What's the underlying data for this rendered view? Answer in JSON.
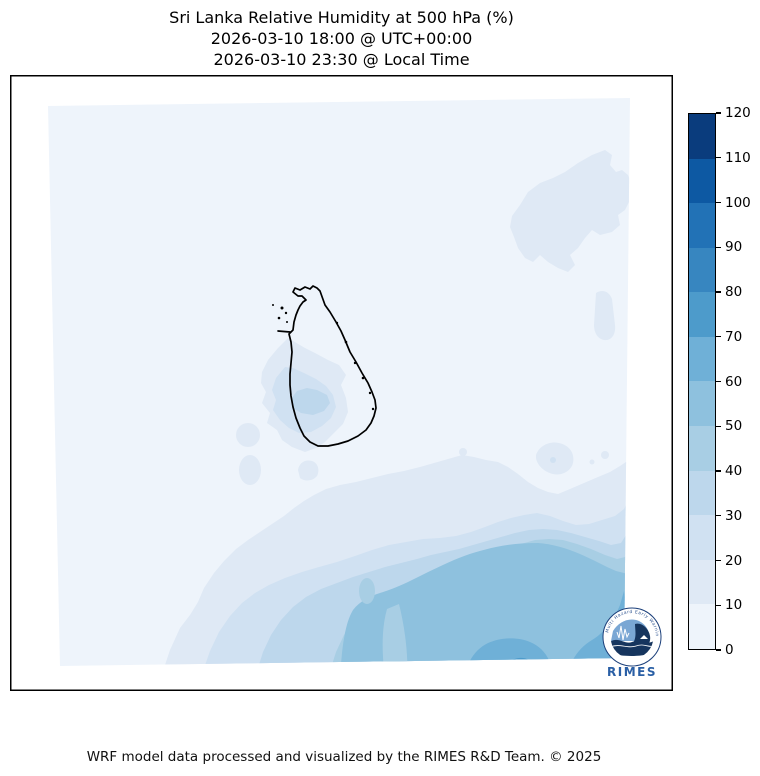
{
  "title": {
    "line1": "Sri Lanka Relative Humidity at 500 hPa (%)",
    "line2": "2026-03-10 18:00 @ UTC+00:00",
    "line3": "2026-03-10 23:30 @ Local Time"
  },
  "footer": {
    "credit": "WRF model data processed and visualized by the RIMES R&D Team. © 2025"
  },
  "colorbar": {
    "min": 0,
    "max": 120,
    "step": 10,
    "ticks": [
      0,
      10,
      20,
      30,
      40,
      50,
      60,
      70,
      80,
      90,
      100,
      110,
      120
    ],
    "colors": [
      "#eef4fb",
      "#dfe9f5",
      "#d0e1f2",
      "#bdd7ec",
      "#a8cee4",
      "#8ec1de",
      "#6fb0d7",
      "#4d9bcb",
      "#3786c0",
      "#2272b6",
      "#0d59a3",
      "#0a3c7d"
    ]
  },
  "logo": {
    "org": "RIMES",
    "ring_text": "Multi Hazard Early Warning System"
  },
  "chart_data": {
    "type": "heatmap",
    "subtype": "filled-contour-weather-map",
    "title": "Sri Lanka Relative Humidity at 500 hPa (%)",
    "valid_time_utc": "2026-03-10 18:00 @ UTC+00:00",
    "valid_time_local": "2026-03-10 23:30 @ Local Time",
    "variable": "Relative Humidity",
    "pressure_level": "500 hPa",
    "units": "%",
    "colormap": "Blues",
    "levels": [
      0,
      10,
      20,
      30,
      40,
      50,
      60,
      70,
      80,
      90,
      100,
      110,
      120
    ],
    "legend_position": "right-colorbar",
    "map_outline": "Sri Lanka coastline",
    "regions": [
      {
        "area": "most of WRF domain (around and north of Sri Lanka)",
        "value_range": [
          0,
          10
        ]
      },
      {
        "area": "patch northeast/east of Sri Lanka near domain edge",
        "value_range": [
          10,
          20
        ]
      },
      {
        "area": "small patches over west and southwest Sri Lanka",
        "value_range": [
          20,
          40
        ]
      },
      {
        "area": "broad region across southern third of domain",
        "value_range": [
          10,
          40
        ]
      },
      {
        "area": "large area in south-southeast of domain",
        "value_range": [
          40,
          60
        ]
      },
      {
        "area": "cores along bottom edge and bottom-right corner of domain",
        "value_range": [
          60,
          80
        ]
      }
    ]
  }
}
